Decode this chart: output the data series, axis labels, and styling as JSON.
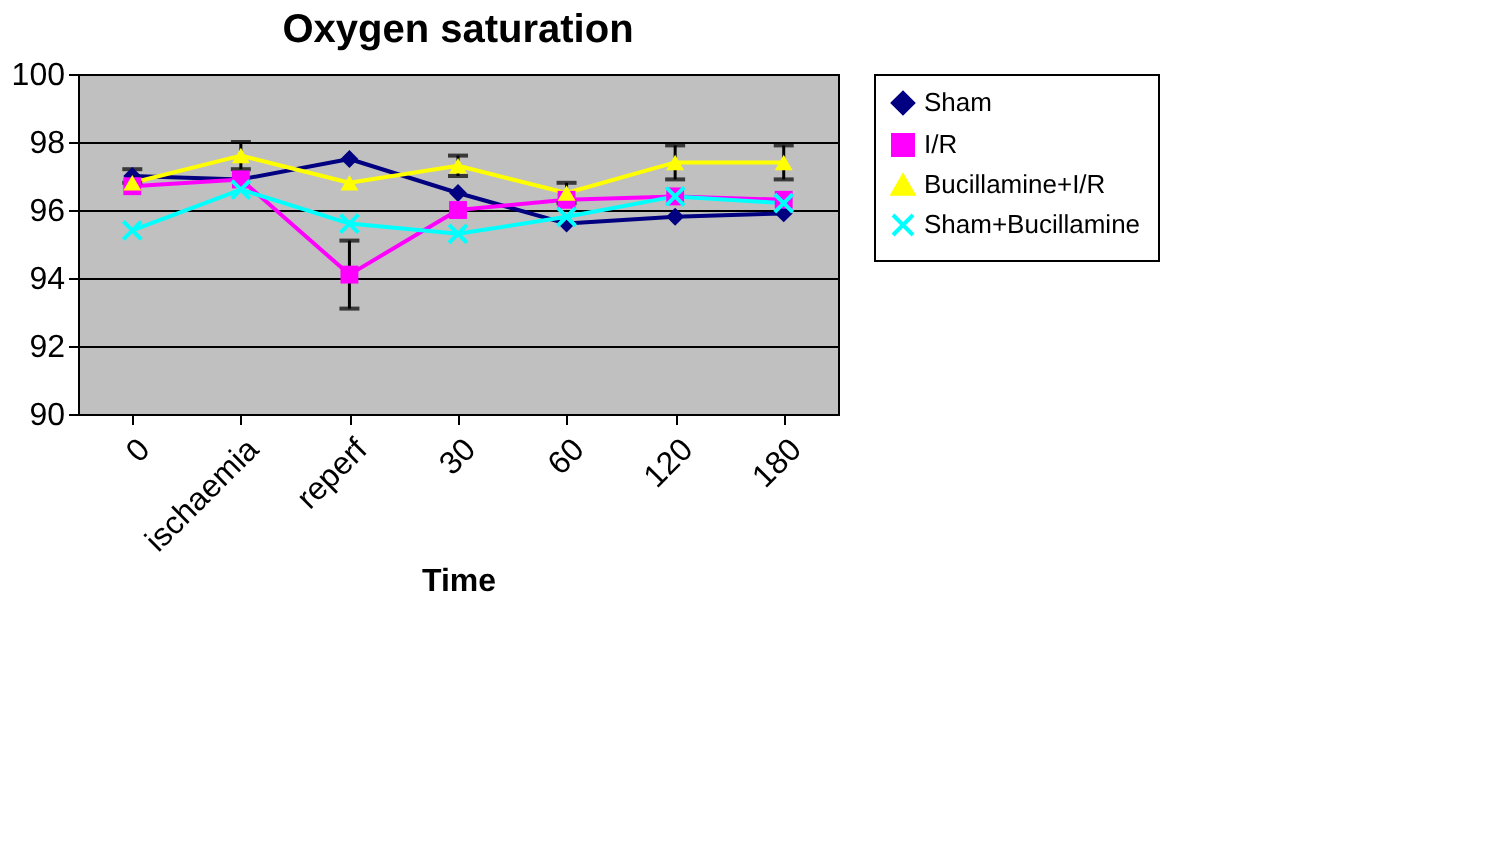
{
  "chart_data": {
    "type": "line",
    "title": "Oxygen saturation",
    "xlabel": "Time",
    "categories": [
      "0",
      "ischaemia",
      "reperf",
      "30",
      "60",
      "120",
      "180"
    ],
    "ylim": [
      90,
      100
    ],
    "yticks": [
      90,
      92,
      94,
      96,
      98,
      100
    ],
    "grid": "y",
    "legend": "right",
    "series": [
      {
        "name": "Sham",
        "color": "#000080",
        "marker": "diamond",
        "values": [
          97.0,
          96.9,
          97.5,
          96.5,
          95.6,
          95.8,
          95.9
        ],
        "errors": [
          0.2,
          null,
          null,
          null,
          null,
          null,
          null
        ]
      },
      {
        "name": "I/R",
        "color": "#ff00ff",
        "marker": "square",
        "values": [
          96.7,
          96.9,
          94.1,
          96.0,
          96.3,
          96.4,
          96.3
        ],
        "errors": [
          null,
          null,
          1.0,
          null,
          null,
          null,
          null
        ]
      },
      {
        "name": "Bucillamine+I/R",
        "color": "#ffff00",
        "marker": "triangle",
        "values": [
          96.8,
          97.6,
          96.8,
          97.3,
          96.5,
          97.4,
          97.4
        ],
        "errors": [
          null,
          0.4,
          null,
          0.3,
          0.3,
          0.5,
          0.5
        ]
      },
      {
        "name": "Sham+Bucillamine",
        "color": "#00ffff",
        "marker": "cross",
        "values": [
          95.4,
          96.6,
          95.6,
          95.3,
          95.8,
          96.4,
          96.2
        ]
      }
    ]
  }
}
